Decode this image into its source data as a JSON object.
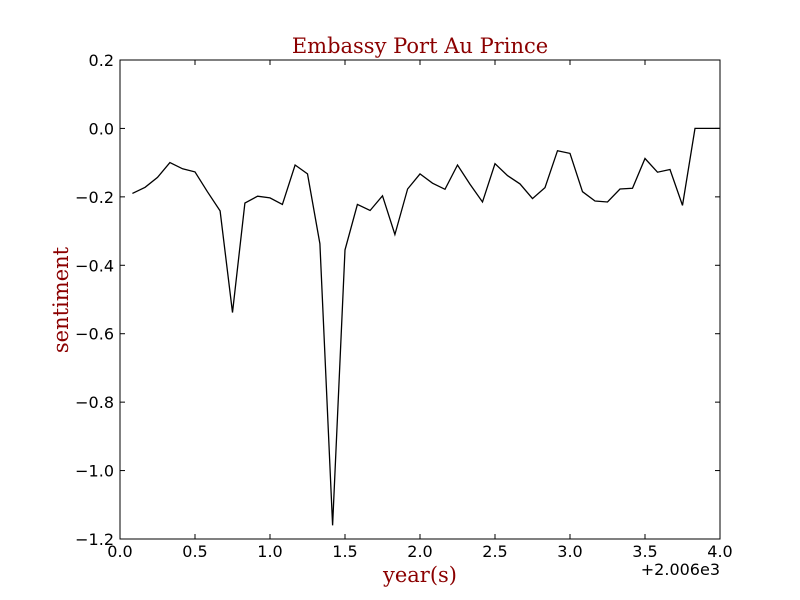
{
  "chart_data": {
    "type": "line",
    "title": "Embassy Port Au Prince",
    "xlabel": "year(s)",
    "ylabel": "sentiment",
    "x_offset_label": "+2.006e3",
    "xlim": [
      0.0,
      4.0
    ],
    "ylim": [
      -1.2,
      0.2
    ],
    "x_ticks": [
      0.0,
      0.5,
      1.0,
      1.5,
      2.0,
      2.5,
      3.0,
      3.5,
      4.0
    ],
    "x_tick_labels": [
      "0.0",
      "0.5",
      "1.0",
      "1.5",
      "2.0",
      "2.5",
      "3.0",
      "3.5",
      "4.0"
    ],
    "y_ticks": [
      0.2,
      0.0,
      -0.2,
      -0.4,
      -0.6,
      -0.8,
      -1.0,
      -1.2
    ],
    "y_tick_labels": [
      "0.2",
      "0.0",
      "−0.2",
      "−0.4",
      "−0.6",
      "−0.8",
      "−1.0",
      "−1.2"
    ],
    "grid": false,
    "line_color": "#000000",
    "title_color": "#8b0000",
    "series": [
      {
        "x": [
          0.083,
          0.167,
          0.25,
          0.333,
          0.417,
          0.5,
          0.583,
          0.667,
          0.75,
          0.833,
          0.917,
          1.0,
          1.083,
          1.167,
          1.25,
          1.333,
          1.417,
          1.5,
          1.583,
          1.667,
          1.75,
          1.833,
          1.917,
          2.0,
          2.083,
          2.167,
          2.25,
          2.333,
          2.417,
          2.5,
          2.583,
          2.667,
          2.75,
          2.833,
          2.917,
          3.0,
          3.083,
          3.167,
          3.25,
          3.333,
          3.417,
          3.5,
          3.583,
          3.667,
          3.75,
          3.833,
          3.917,
          4.0
        ],
        "values": [
          -0.19,
          -0.172,
          -0.143,
          -0.1,
          -0.118,
          -0.127,
          -0.185,
          -0.241,
          -0.538,
          -0.218,
          -0.198,
          -0.203,
          -0.222,
          -0.107,
          -0.133,
          -0.337,
          -1.16,
          -0.355,
          -0.222,
          -0.24,
          -0.197,
          -0.31,
          -0.177,
          -0.133,
          -0.16,
          -0.178,
          -0.107,
          -0.163,
          -0.215,
          -0.103,
          -0.138,
          -0.162,
          -0.205,
          -0.173,
          -0.065,
          -0.073,
          -0.185,
          -0.212,
          -0.215,
          -0.177,
          -0.175,
          -0.088,
          -0.128,
          -0.12,
          -0.225,
          0.0,
          0.0,
          0.0
        ]
      }
    ]
  }
}
